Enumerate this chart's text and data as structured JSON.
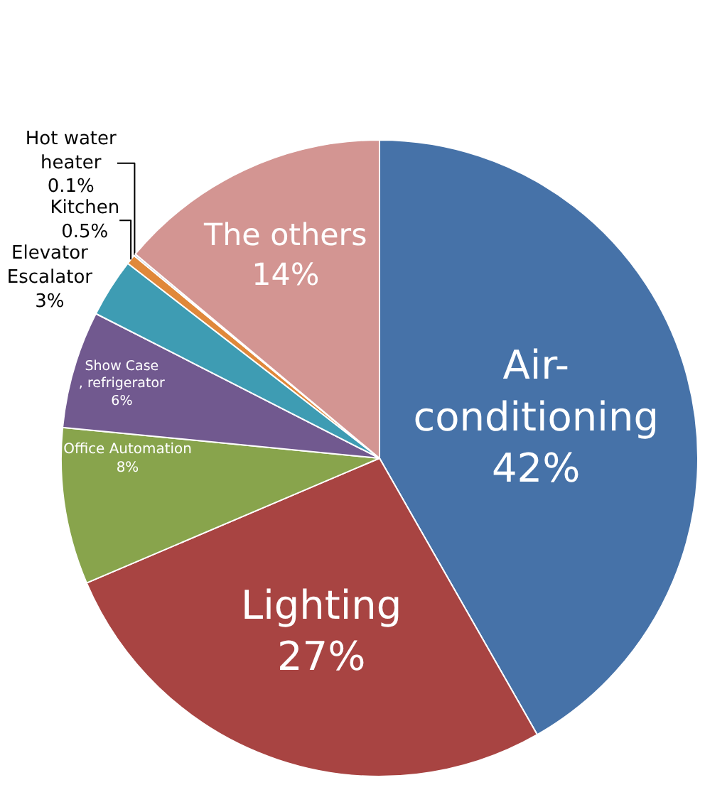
{
  "chart_data": {
    "type": "pie",
    "categories": [
      "Air-\nconditioning",
      "Lighting",
      "Office Automation",
      "Show Case\n, refrigerator",
      "Elevator\nEscalator",
      "Kitchen",
      "Hot water\nheater",
      "The others"
    ],
    "values": [
      42,
      27,
      8,
      6,
      3,
      0.5,
      0.1,
      14
    ],
    "value_labels": [
      "42%",
      "27%",
      "8%",
      "6%",
      "3%",
      "0.5%",
      "0.1%",
      "14%"
    ],
    "colors": [
      "#4672a8",
      "#a84442",
      "#88a44c",
      "#71598f",
      "#3e9cb3",
      "#e0883a",
      "#a9bcd9",
      "#d39592"
    ],
    "legend": false
  }
}
